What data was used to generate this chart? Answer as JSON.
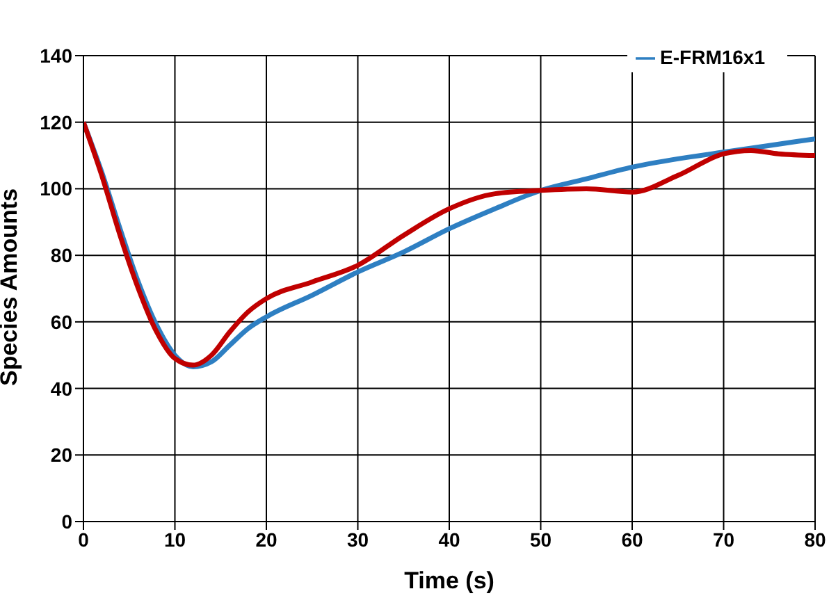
{
  "chart_data": {
    "type": "line",
    "xlabel": "Time (s)",
    "ylabel": "Species Amounts",
    "xlim": [
      0,
      80
    ],
    "xticks": [
      0,
      10,
      20,
      30,
      40,
      50,
      60,
      70,
      80
    ],
    "ylim": [
      0,
      140
    ],
    "yticks": [
      0,
      20,
      40,
      60,
      80,
      100,
      120,
      140
    ],
    "grid": true,
    "legend": "top right",
    "marker": "none",
    "line_style": "solid",
    "series": [
      {
        "name": "E-FRM16x1",
        "color": "#2e7fc2",
        "x": [
          0,
          2,
          4,
          6,
          8,
          10,
          12,
          14,
          16,
          18,
          20,
          25,
          30,
          35,
          40,
          45,
          50,
          55,
          60,
          65,
          70,
          75,
          80
        ],
        "values": [
          120,
          105,
          88,
          72,
          59,
          50,
          46.5,
          48,
          53,
          58,
          61.5,
          68,
          75,
          81,
          88,
          94,
          99.5,
          103,
          106.5,
          109,
          111,
          113,
          115
        ]
      },
      {
        "color": "#c00000",
        "x": [
          0,
          2,
          4,
          6,
          8,
          10,
          12,
          14,
          16,
          18,
          20,
          25,
          30,
          35,
          40,
          45,
          50,
          55,
          60,
          65,
          70,
          73,
          76,
          80
        ],
        "values": [
          120,
          104,
          86,
          70,
          57,
          49,
          47,
          50,
          57,
          63,
          67,
          72,
          77,
          86,
          94,
          98.5,
          99.5,
          100,
          99,
          104,
          110.5,
          111.5,
          110.5,
          110
        ]
      }
    ]
  }
}
